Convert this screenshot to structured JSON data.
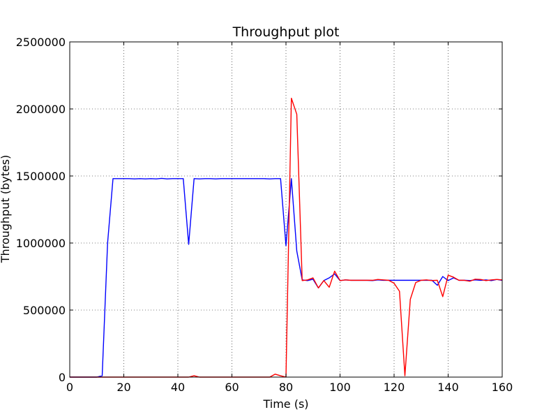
{
  "chart_data": {
    "type": "line",
    "title": "Throughput plot",
    "xlabel": "Time (s)",
    "ylabel": "Throughput (bytes)",
    "xlim": [
      0,
      160
    ],
    "ylim": [
      0,
      2500000
    ],
    "grid": true,
    "xticks": [
      {
        "value": 0,
        "label": "0"
      },
      {
        "value": 20,
        "label": "20"
      },
      {
        "value": 40,
        "label": "40"
      },
      {
        "value": 60,
        "label": "60"
      },
      {
        "value": 80,
        "label": "80"
      },
      {
        "value": 100,
        "label": "100"
      },
      {
        "value": 120,
        "label": "120"
      },
      {
        "value": 140,
        "label": "140"
      },
      {
        "value": 160,
        "label": "160"
      }
    ],
    "yticks": [
      {
        "value": 0,
        "label": "0"
      },
      {
        "value": 500000,
        "label": "500000"
      },
      {
        "value": 1000000,
        "label": "1000000"
      },
      {
        "value": 1500000,
        "label": "1500000"
      },
      {
        "value": 2000000,
        "label": "2000000"
      },
      {
        "value": 2500000,
        "label": "2500000"
      }
    ],
    "series": [
      {
        "color": "#0000ff",
        "points": [
          [
            0,
            0
          ],
          [
            10,
            0
          ],
          [
            12,
            10000
          ],
          [
            14,
            1000000
          ],
          [
            16,
            1480000
          ],
          [
            18,
            1480000
          ],
          [
            20,
            1480000
          ],
          [
            22,
            1480000
          ],
          [
            24,
            1478000
          ],
          [
            26,
            1480000
          ],
          [
            28,
            1478000
          ],
          [
            30,
            1480000
          ],
          [
            32,
            1478000
          ],
          [
            34,
            1482000
          ],
          [
            36,
            1478000
          ],
          [
            38,
            1480000
          ],
          [
            40,
            1480000
          ],
          [
            42,
            1480000
          ],
          [
            44,
            990000
          ],
          [
            46,
            1480000
          ],
          [
            48,
            1478000
          ],
          [
            50,
            1480000
          ],
          [
            52,
            1480000
          ],
          [
            54,
            1478000
          ],
          [
            56,
            1480000
          ],
          [
            58,
            1480000
          ],
          [
            60,
            1480000
          ],
          [
            62,
            1480000
          ],
          [
            64,
            1480000
          ],
          [
            66,
            1480000
          ],
          [
            68,
            1480000
          ],
          [
            70,
            1480000
          ],
          [
            72,
            1480000
          ],
          [
            74,
            1478000
          ],
          [
            76,
            1480000
          ],
          [
            78,
            1480000
          ],
          [
            80,
            980000
          ],
          [
            82,
            1480000
          ],
          [
            84,
            940000
          ],
          [
            86,
            725000
          ],
          [
            88,
            720000
          ],
          [
            90,
            730000
          ],
          [
            92,
            665000
          ],
          [
            94,
            720000
          ],
          [
            96,
            740000
          ],
          [
            98,
            770000
          ],
          [
            100,
            720000
          ],
          [
            102,
            725000
          ],
          [
            104,
            722000
          ],
          [
            106,
            722000
          ],
          [
            108,
            722000
          ],
          [
            110,
            722000
          ],
          [
            112,
            720000
          ],
          [
            114,
            725000
          ],
          [
            116,
            722000
          ],
          [
            118,
            722000
          ],
          [
            120,
            722000
          ],
          [
            122,
            722000
          ],
          [
            124,
            722000
          ],
          [
            126,
            722000
          ],
          [
            128,
            722000
          ],
          [
            130,
            722000
          ],
          [
            132,
            722000
          ],
          [
            134,
            722000
          ],
          [
            136,
            685000
          ],
          [
            138,
            750000
          ],
          [
            140,
            720000
          ],
          [
            142,
            740000
          ],
          [
            144,
            722000
          ],
          [
            146,
            722000
          ],
          [
            148,
            720000
          ],
          [
            150,
            725000
          ],
          [
            152,
            722000
          ],
          [
            154,
            725000
          ],
          [
            156,
            720000
          ],
          [
            158,
            728000
          ],
          [
            160,
            722000
          ]
        ]
      },
      {
        "color": "#ff0000",
        "points": [
          [
            0,
            0
          ],
          [
            20,
            0
          ],
          [
            44,
            0
          ],
          [
            46,
            10000
          ],
          [
            48,
            0
          ],
          [
            60,
            0
          ],
          [
            74,
            0
          ],
          [
            76,
            22000
          ],
          [
            78,
            10000
          ],
          [
            80,
            0
          ],
          [
            82,
            2080000
          ],
          [
            84,
            1960000
          ],
          [
            86,
            720000
          ],
          [
            88,
            725000
          ],
          [
            90,
            740000
          ],
          [
            92,
            665000
          ],
          [
            94,
            720000
          ],
          [
            96,
            670000
          ],
          [
            98,
            790000
          ],
          [
            100,
            720000
          ],
          [
            102,
            725000
          ],
          [
            104,
            722000
          ],
          [
            106,
            722000
          ],
          [
            108,
            722000
          ],
          [
            110,
            722000
          ],
          [
            112,
            722000
          ],
          [
            114,
            728000
          ],
          [
            116,
            725000
          ],
          [
            118,
            722000
          ],
          [
            120,
            700000
          ],
          [
            122,
            640000
          ],
          [
            124,
            10000
          ],
          [
            126,
            580000
          ],
          [
            128,
            705000
          ],
          [
            130,
            722000
          ],
          [
            132,
            725000
          ],
          [
            134,
            720000
          ],
          [
            136,
            722000
          ],
          [
            138,
            600000
          ],
          [
            140,
            760000
          ],
          [
            142,
            745000
          ],
          [
            144,
            722000
          ],
          [
            146,
            722000
          ],
          [
            148,
            715000
          ],
          [
            150,
            730000
          ],
          [
            152,
            728000
          ],
          [
            154,
            720000
          ],
          [
            156,
            725000
          ],
          [
            158,
            728000
          ],
          [
            160,
            725000
          ]
        ]
      }
    ]
  }
}
